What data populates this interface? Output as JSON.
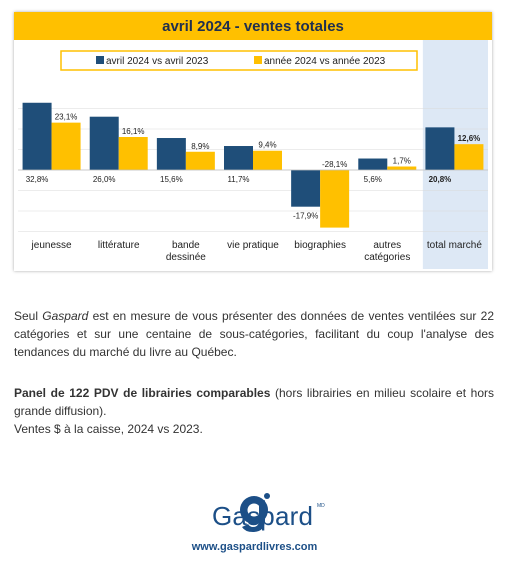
{
  "chart_data": {
    "type": "bar",
    "title": "avril 2024 - ventes totales",
    "categories": [
      "jeunesse",
      "littérature",
      "bande dessinée",
      "vie pratique",
      "biographies",
      "autres catégories",
      "total marché"
    ],
    "series": [
      {
        "name": "avril 2024 vs avril 2023",
        "color": "#1f4e79",
        "values": [
          32.8,
          26.0,
          15.6,
          11.7,
          -17.9,
          5.6,
          20.8
        ],
        "labels": [
          "32,8%",
          "26,0%",
          "15,6%",
          "11,7%",
          "-17,9%",
          "5,6%",
          "20,8%"
        ]
      },
      {
        "name": "année 2024 vs année 2023",
        "color": "#ffc000",
        "values": [
          23.1,
          16.1,
          8.9,
          9.4,
          -28.1,
          1.7,
          12.6
        ],
        "labels": [
          "23,1%",
          "16,1%",
          "8,9%",
          "9,4%",
          "-28,1%",
          "1,7%",
          "12,6%"
        ]
      }
    ],
    "category_label_lines": [
      [
        "jeunesse"
      ],
      [
        "littérature"
      ],
      [
        "bande",
        "dessinée"
      ],
      [
        "vie pratique"
      ],
      [
        "biographies"
      ],
      [
        "autres",
        "catégories"
      ],
      [
        "total marché"
      ]
    ],
    "ylim": [
      -30,
      35
    ],
    "highlight_category": "total marché",
    "colors": {
      "title_bar": "#ffc000",
      "title_text": "#1f2f4f",
      "highlight_bg": "#dde8f5",
      "grid": "#d9d9d9"
    }
  },
  "text": {
    "intro_pre": "Seul ",
    "intro_em": "Gaspard",
    "intro_post": " est en mesure de vous présenter des données de ventes ventilées sur 22 catégories et sur une centaine de sous-catégories, facilitant du coup l'analyse des tendances du marché du livre au Québec.",
    "panel_bold": "Panel de 122 PDV de librairies comparables",
    "panel_rest": " (hors librairies en milieu scolaire et hors grande diffusion).",
    "panel_line2": "Ventes $ à la caisse, 2024 vs 2023."
  },
  "logo": {
    "name": "Gaspard",
    "icon": "gaspard-g-logo-icon"
  },
  "footer": {
    "website": "www.gaspardlivres.com"
  }
}
